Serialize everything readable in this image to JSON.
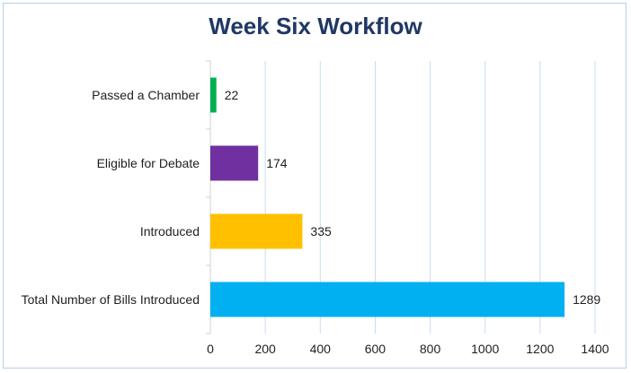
{
  "chart_data": {
    "type": "bar",
    "orientation": "horizontal",
    "title": "Week Six Workflow",
    "categories": [
      "Passed a Chamber",
      "Eligible for Debate",
      "Introduced",
      "Total Number of Bills Introduced"
    ],
    "values": [
      22,
      174,
      335,
      1289
    ],
    "colors": [
      "#00b050",
      "#7030a0",
      "#ffc000",
      "#00b0f0"
    ],
    "xlim": [
      0,
      1400
    ],
    "xticks": [
      "0",
      "200",
      "400",
      "600",
      "800",
      "1000",
      "1200",
      "1400"
    ],
    "grid": true,
    "legend": "none"
  }
}
